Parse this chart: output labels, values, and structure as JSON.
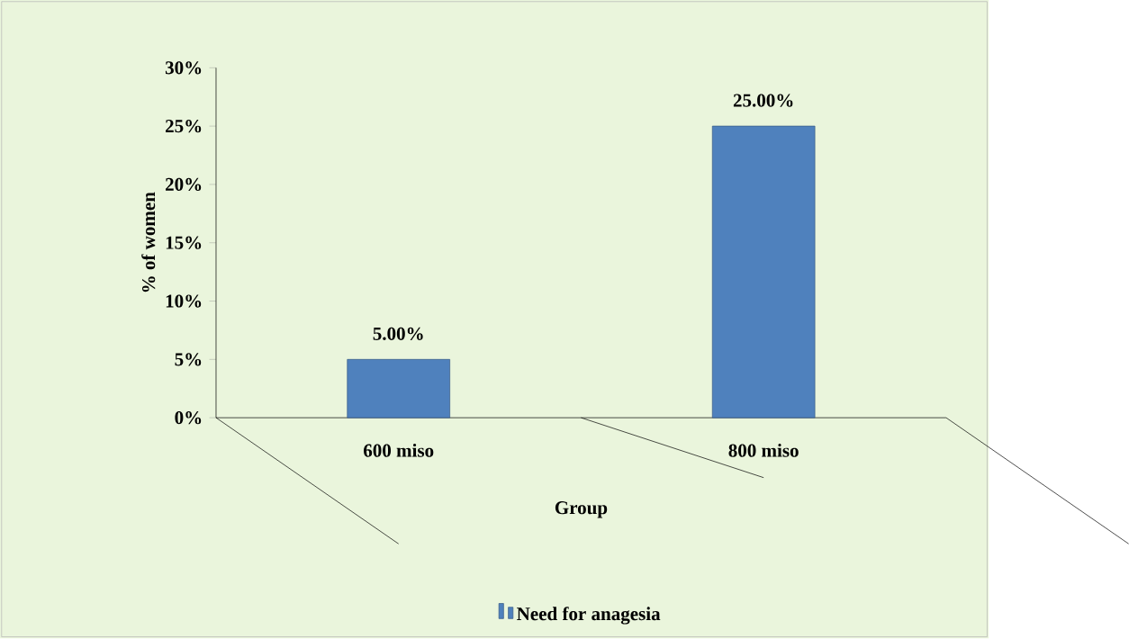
{
  "chart_data": {
    "type": "bar",
    "xlabel": "Group",
    "ylabel": "% of women",
    "categories": [
      "600 miso",
      "800 miso"
    ],
    "series": [
      {
        "name": "Need for anagesia",
        "color": "#4f81bd",
        "values": [
          5,
          25
        ],
        "value_labels": [
          "5.00%",
          "25.00%"
        ]
      }
    ],
    "ylim": [
      0,
      30
    ],
    "yticks": [
      {
        "value": 0,
        "label": "0%"
      },
      {
        "value": 5,
        "label": "5%"
      },
      {
        "value": 10,
        "label": "10%"
      },
      {
        "value": 15,
        "label": "15%"
      },
      {
        "value": 20,
        "label": "20%"
      },
      {
        "value": 25,
        "label": "25%"
      },
      {
        "value": 30,
        "label": "30%"
      }
    ],
    "grid": false,
    "legend": "bottom"
  }
}
